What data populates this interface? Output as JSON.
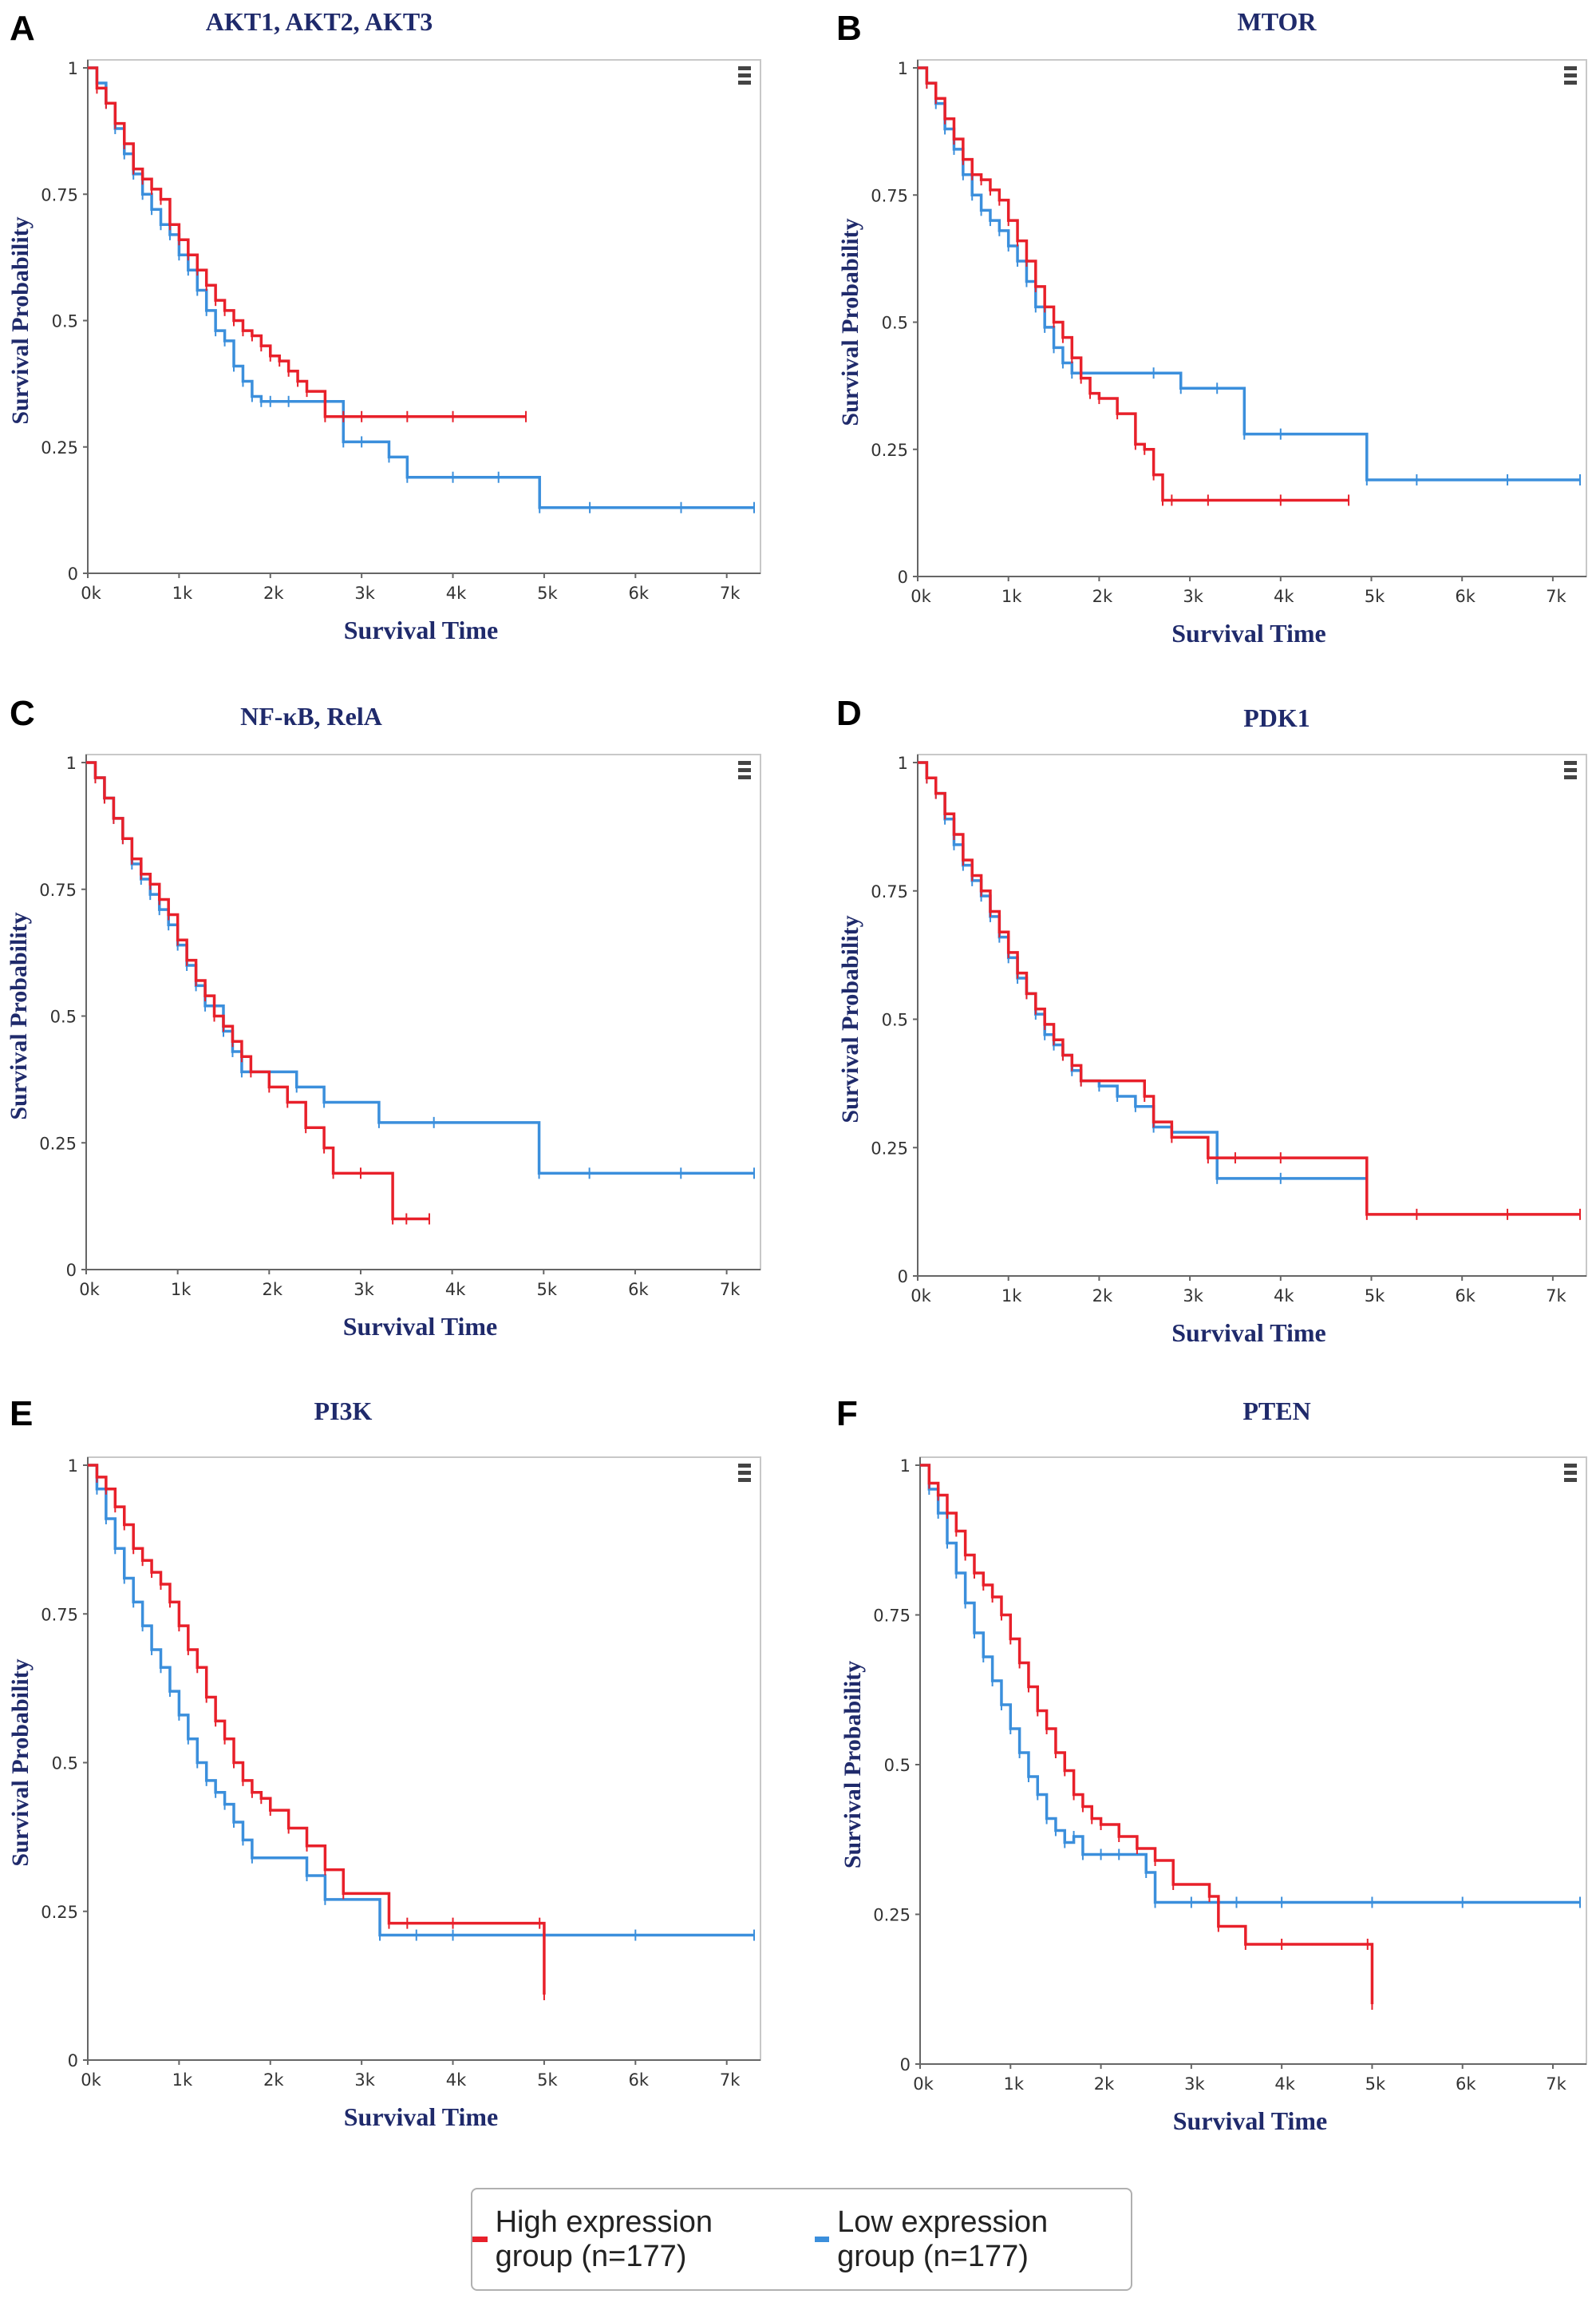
{
  "colors": {
    "high": "#e8202a",
    "low": "#3b8fdc",
    "title": "#1f2a6b",
    "axis": "#666666",
    "frame": "#c8c8c8",
    "panel_label": "#000000"
  },
  "legend": {
    "items": [
      {
        "label": "High expression group (n=177)",
        "color": "#e8202a"
      },
      {
        "label": "Low expression group (n=177)",
        "color": "#3b8fdc"
      }
    ]
  },
  "chart_data": [
    {
      "type": "line",
      "panel": "A",
      "title": "AKT1, AKT2, AKT3",
      "xlabel": "Survival Time",
      "ylabel": "Survival Probability",
      "xlim": [
        0,
        7300
      ],
      "ylim": [
        0,
        1
      ],
      "xticks": [
        "0k",
        "1k",
        "2k",
        "3k",
        "4k",
        "5k",
        "6k",
        "7k"
      ],
      "yticks": [
        "0",
        "0.25",
        "0.5",
        "0.75",
        "1"
      ],
      "series": [
        {
          "name": "High expression group (n=177)",
          "x": [
            0,
            100,
            200,
            300,
            400,
            500,
            600,
            700,
            800,
            900,
            1000,
            1100,
            1200,
            1300,
            1400,
            1500,
            1600,
            1700,
            1800,
            1900,
            2000,
            2100,
            2200,
            2300,
            2400,
            2600,
            2800,
            3000,
            3500,
            4000,
            4800
          ],
          "y": [
            1,
            0.96,
            0.93,
            0.89,
            0.85,
            0.8,
            0.78,
            0.76,
            0.74,
            0.69,
            0.66,
            0.63,
            0.6,
            0.57,
            0.54,
            0.52,
            0.5,
            0.48,
            0.47,
            0.45,
            0.43,
            0.42,
            0.4,
            0.38,
            0.36,
            0.31,
            0.31,
            0.31,
            0.31,
            0.31,
            0.31
          ]
        },
        {
          "name": "Low expression group (n=177)",
          "x": [
            0,
            100,
            200,
            300,
            400,
            500,
            600,
            700,
            800,
            900,
            1000,
            1100,
            1200,
            1300,
            1400,
            1500,
            1600,
            1700,
            1800,
            1900,
            2000,
            2200,
            2600,
            2800,
            3000,
            3300,
            3500,
            4000,
            4500,
            4950,
            5500,
            6500,
            7300
          ],
          "y": [
            1,
            0.97,
            0.93,
            0.88,
            0.83,
            0.79,
            0.75,
            0.72,
            0.69,
            0.67,
            0.63,
            0.6,
            0.56,
            0.52,
            0.48,
            0.46,
            0.41,
            0.38,
            0.35,
            0.34,
            0.34,
            0.34,
            0.34,
            0.26,
            0.26,
            0.23,
            0.19,
            0.19,
            0.19,
            0.13,
            0.13,
            0.13,
            0.13
          ]
        }
      ]
    },
    {
      "type": "line",
      "panel": "B",
      "title": "MTOR",
      "xlabel": "Survival Time",
      "ylabel": "Survival Probability",
      "xlim": [
        0,
        7300
      ],
      "ylim": [
        0,
        1
      ],
      "xticks": [
        "0k",
        "1k",
        "2k",
        "3k",
        "4k",
        "5k",
        "6k",
        "7k"
      ],
      "yticks": [
        "0",
        "0.25",
        "0.5",
        "0.75",
        "1"
      ],
      "series": [
        {
          "name": "High expression group (n=177)",
          "x": [
            0,
            100,
            200,
            300,
            400,
            500,
            600,
            700,
            800,
            900,
            1000,
            1100,
            1200,
            1300,
            1400,
            1500,
            1600,
            1700,
            1800,
            1900,
            2000,
            2200,
            2400,
            2500,
            2600,
            2700,
            2800,
            3200,
            4000,
            4750
          ],
          "y": [
            1,
            0.97,
            0.94,
            0.9,
            0.86,
            0.82,
            0.79,
            0.78,
            0.76,
            0.74,
            0.7,
            0.66,
            0.62,
            0.57,
            0.53,
            0.5,
            0.47,
            0.43,
            0.39,
            0.36,
            0.35,
            0.32,
            0.26,
            0.25,
            0.2,
            0.15,
            0.15,
            0.15,
            0.15,
            0.15
          ]
        },
        {
          "name": "Low expression group (n=177)",
          "x": [
            0,
            100,
            200,
            300,
            400,
            500,
            600,
            700,
            800,
            900,
            1000,
            1100,
            1200,
            1300,
            1400,
            1500,
            1600,
            1700,
            2600,
            2900,
            3300,
            3600,
            4000,
            4950,
            5500,
            6500,
            7300
          ],
          "y": [
            1,
            0.97,
            0.93,
            0.88,
            0.84,
            0.79,
            0.75,
            0.72,
            0.7,
            0.68,
            0.65,
            0.62,
            0.58,
            0.53,
            0.49,
            0.45,
            0.42,
            0.4,
            0.4,
            0.37,
            0.37,
            0.28,
            0.28,
            0.19,
            0.19,
            0.19,
            0.19
          ]
        }
      ]
    },
    {
      "type": "line",
      "panel": "C",
      "title": "NF-κB, RelA",
      "xlabel": "Survival Time",
      "ylabel": "Survival Probability",
      "xlim": [
        0,
        7300
      ],
      "ylim": [
        0,
        1
      ],
      "xticks": [
        "0k",
        "1k",
        "2k",
        "3k",
        "4k",
        "5k",
        "6k",
        "7k"
      ],
      "yticks": [
        "0",
        "0.25",
        "0.5",
        "0.75",
        "1"
      ],
      "series": [
        {
          "name": "High expression group (n=177)",
          "x": [
            0,
            100,
            200,
            300,
            400,
            500,
            600,
            700,
            800,
            900,
            1000,
            1100,
            1200,
            1300,
            1400,
            1500,
            1600,
            1700,
            1800,
            2000,
            2200,
            2400,
            2600,
            2700,
            3000,
            3350,
            3500,
            3750
          ],
          "y": [
            1,
            0.97,
            0.93,
            0.89,
            0.85,
            0.81,
            0.78,
            0.76,
            0.73,
            0.7,
            0.65,
            0.61,
            0.57,
            0.54,
            0.5,
            0.48,
            0.45,
            0.42,
            0.39,
            0.36,
            0.33,
            0.28,
            0.24,
            0.19,
            0.19,
            0.1,
            0.1,
            0.1
          ]
        },
        {
          "name": "Low expression group (n=177)",
          "x": [
            0,
            100,
            200,
            300,
            400,
            500,
            600,
            700,
            800,
            900,
            1000,
            1100,
            1200,
            1300,
            1400,
            1500,
            1600,
            1700,
            2300,
            2600,
            3200,
            3800,
            4950,
            5500,
            6500,
            7300
          ],
          "y": [
            1,
            0.97,
            0.93,
            0.89,
            0.85,
            0.8,
            0.77,
            0.74,
            0.71,
            0.68,
            0.64,
            0.6,
            0.56,
            0.52,
            0.52,
            0.47,
            0.43,
            0.39,
            0.36,
            0.33,
            0.29,
            0.29,
            0.19,
            0.19,
            0.19,
            0.19
          ]
        }
      ]
    },
    {
      "type": "line",
      "panel": "D",
      "title": "PDK1",
      "xlabel": "Survival Time",
      "ylabel": "Survival Probability",
      "xlim": [
        0,
        7300
      ],
      "ylim": [
        0,
        1
      ],
      "xticks": [
        "0k",
        "1k",
        "2k",
        "3k",
        "4k",
        "5k",
        "6k",
        "7k"
      ],
      "yticks": [
        "0",
        "0.25",
        "0.5",
        "0.75",
        "1"
      ],
      "series": [
        {
          "name": "High expression group (n=177)",
          "x": [
            0,
            100,
            200,
            300,
            400,
            500,
            600,
            700,
            800,
            900,
            1000,
            1100,
            1200,
            1300,
            1400,
            1500,
            1600,
            1700,
            1800,
            2500,
            2600,
            2800,
            3200,
            3500,
            4000,
            4950,
            5500,
            6500,
            7300
          ],
          "y": [
            1,
            0.97,
            0.94,
            0.9,
            0.86,
            0.81,
            0.78,
            0.75,
            0.71,
            0.67,
            0.63,
            0.59,
            0.55,
            0.52,
            0.49,
            0.46,
            0.43,
            0.41,
            0.38,
            0.35,
            0.3,
            0.27,
            0.23,
            0.23,
            0.23,
            0.12,
            0.12,
            0.12,
            0.12
          ]
        },
        {
          "name": "Low expression group (n=177)",
          "x": [
            0,
            100,
            200,
            300,
            400,
            500,
            600,
            700,
            800,
            900,
            1000,
            1100,
            1200,
            1300,
            1400,
            1500,
            1600,
            1700,
            1800,
            2000,
            2200,
            2400,
            2600,
            2800,
            3300,
            4000,
            4950
          ],
          "y": [
            1,
            0.97,
            0.94,
            0.89,
            0.84,
            0.8,
            0.77,
            0.74,
            0.7,
            0.66,
            0.62,
            0.58,
            0.55,
            0.51,
            0.47,
            0.45,
            0.43,
            0.4,
            0.38,
            0.37,
            0.35,
            0.33,
            0.29,
            0.28,
            0.19,
            0.19,
            0.19
          ]
        }
      ]
    },
    {
      "type": "line",
      "panel": "E",
      "title": "PI3K",
      "xlabel": "Survival Time",
      "ylabel": "Survival Probability",
      "xlim": [
        0,
        7300
      ],
      "ylim": [
        0,
        1
      ],
      "xticks": [
        "0k",
        "1k",
        "2k",
        "3k",
        "4k",
        "5k",
        "6k",
        "7k"
      ],
      "yticks": [
        "0",
        "0.25",
        "0.5",
        "0.75",
        "1"
      ],
      "series": [
        {
          "name": "High expression group (n=177)",
          "x": [
            0,
            100,
            200,
            300,
            400,
            500,
            600,
            700,
            800,
            900,
            1000,
            1100,
            1200,
            1300,
            1400,
            1500,
            1600,
            1700,
            1800,
            1900,
            2000,
            2200,
            2400,
            2600,
            2800,
            3300,
            3500,
            4000,
            4950,
            5000
          ],
          "y": [
            1,
            0.98,
            0.96,
            0.93,
            0.9,
            0.86,
            0.84,
            0.82,
            0.8,
            0.77,
            0.73,
            0.69,
            0.66,
            0.61,
            0.57,
            0.54,
            0.5,
            0.47,
            0.45,
            0.44,
            0.42,
            0.39,
            0.36,
            0.32,
            0.28,
            0.23,
            0.23,
            0.23,
            0.23,
            0.11
          ]
        },
        {
          "name": "Low expression group (n=177)",
          "x": [
            0,
            100,
            200,
            300,
            400,
            500,
            600,
            700,
            800,
            900,
            1000,
            1100,
            1200,
            1300,
            1400,
            1500,
            1600,
            1700,
            1800,
            2400,
            2600,
            3200,
            3600,
            4000,
            5000,
            6000,
            7300
          ],
          "y": [
            1,
            0.96,
            0.91,
            0.86,
            0.81,
            0.77,
            0.73,
            0.69,
            0.66,
            0.62,
            0.58,
            0.54,
            0.5,
            0.47,
            0.45,
            0.43,
            0.4,
            0.37,
            0.34,
            0.31,
            0.27,
            0.21,
            0.21,
            0.21,
            0.21,
            0.21,
            0.21
          ]
        }
      ]
    },
    {
      "type": "line",
      "panel": "F",
      "title": "PTEN",
      "xlabel": "Survival Time",
      "ylabel": "Survival Probability",
      "xlim": [
        0,
        7300
      ],
      "ylim": [
        0,
        1
      ],
      "xticks": [
        "0k",
        "1k",
        "2k",
        "3k",
        "4k",
        "5k",
        "6k",
        "7k"
      ],
      "yticks": [
        "0",
        "0.25",
        "0.5",
        "0.75",
        "1"
      ],
      "series": [
        {
          "name": "High expression group (n=177)",
          "x": [
            0,
            100,
            200,
            300,
            400,
            500,
            600,
            700,
            800,
            900,
            1000,
            1100,
            1200,
            1300,
            1400,
            1500,
            1600,
            1700,
            1800,
            1900,
            2000,
            2200,
            2400,
            2600,
            2800,
            3200,
            3300,
            3600,
            4000,
            4950,
            5000
          ],
          "y": [
            1,
            0.97,
            0.95,
            0.92,
            0.89,
            0.85,
            0.82,
            0.8,
            0.78,
            0.75,
            0.71,
            0.67,
            0.63,
            0.59,
            0.56,
            0.52,
            0.49,
            0.45,
            0.43,
            0.41,
            0.4,
            0.38,
            0.36,
            0.34,
            0.3,
            0.28,
            0.23,
            0.2,
            0.2,
            0.2,
            0.1
          ]
        },
        {
          "name": "Low expression group (n=177)",
          "x": [
            0,
            100,
            200,
            300,
            400,
            500,
            600,
            700,
            800,
            900,
            1000,
            1100,
            1200,
            1300,
            1400,
            1500,
            1600,
            1700,
            1800,
            2000,
            2200,
            2500,
            2600,
            3000,
            3500,
            4000,
            5000,
            6000,
            7300
          ],
          "y": [
            1,
            0.96,
            0.92,
            0.87,
            0.82,
            0.77,
            0.72,
            0.68,
            0.64,
            0.6,
            0.56,
            0.52,
            0.48,
            0.45,
            0.41,
            0.39,
            0.37,
            0.38,
            0.35,
            0.35,
            0.35,
            0.32,
            0.27,
            0.27,
            0.27,
            0.27,
            0.27,
            0.27,
            0.27
          ]
        }
      ]
    }
  ]
}
